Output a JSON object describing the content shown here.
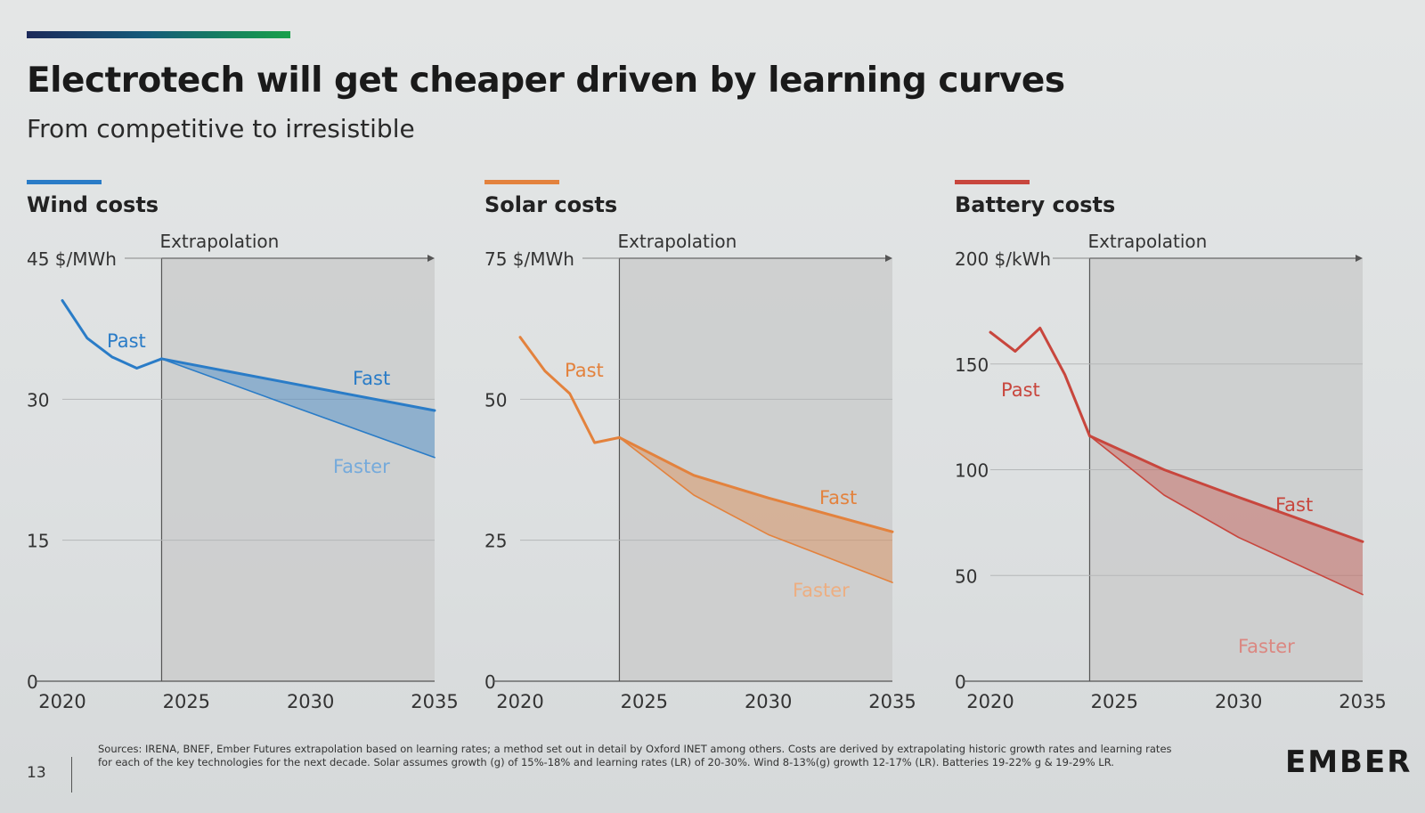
{
  "header": {
    "title": "Electrotech will get cheaper driven by learning curves",
    "subtitle": "From competitive to irresistible"
  },
  "colors": {
    "wind": "#2a7cc7",
    "solar": "#e3823d",
    "battery": "#c8463d"
  },
  "chart_data": [
    {
      "type": "line",
      "title": "Wind costs",
      "extrapolation_label": "Extrapolation",
      "ylabel": "45 $/MWh",
      "ylim": [
        0,
        45
      ],
      "yticks": [
        "0",
        "15",
        "30"
      ],
      "xticks": [
        "2020",
        "2025",
        "2030",
        "2035"
      ],
      "xlim": [
        2020,
        2035
      ],
      "extrapolation_start": 2024,
      "series": [
        {
          "name": "Past",
          "x": [
            2020,
            2021,
            2022,
            2023,
            2024
          ],
          "values": [
            40.5,
            36.5,
            34.5,
            33.3,
            34.3
          ]
        },
        {
          "name": "Fast",
          "x": [
            2024,
            2029,
            2035
          ],
          "values": [
            34.3,
            31.8,
            28.8
          ]
        },
        {
          "name": "Faster",
          "x": [
            2024,
            2029,
            2035
          ],
          "values": [
            34.3,
            29.5,
            23.8
          ]
        }
      ],
      "label_positions": [
        "Past",
        "Fast",
        "Faster"
      ]
    },
    {
      "type": "line",
      "title": "Solar costs",
      "extrapolation_label": "Extrapolation",
      "ylabel": "75 $/MWh",
      "ylim": [
        0,
        75
      ],
      "yticks": [
        "0",
        "25",
        "50"
      ],
      "xticks": [
        "2020",
        "2025",
        "2030",
        "2035"
      ],
      "xlim": [
        2020,
        2035
      ],
      "extrapolation_start": 2024,
      "series": [
        {
          "name": "Past",
          "x": [
            2020,
            2021,
            2022,
            2023,
            2024
          ],
          "values": [
            61,
            55,
            51,
            42.3,
            43.2
          ]
        },
        {
          "name": "Fast",
          "x": [
            2024,
            2027,
            2030,
            2035
          ],
          "values": [
            43.2,
            36.5,
            32.5,
            26.5
          ]
        },
        {
          "name": "Faster",
          "x": [
            2024,
            2027,
            2030,
            2035
          ],
          "values": [
            43.2,
            33,
            26,
            17.5
          ]
        }
      ]
    },
    {
      "type": "line",
      "title": "Battery costs",
      "extrapolation_label": "Extrapolation",
      "ylabel": "200 $/kWh",
      "ylim": [
        0,
        200
      ],
      "yticks": [
        "0",
        "50",
        "100",
        "150"
      ],
      "xticks": [
        "2020",
        "2025",
        "2030",
        "2035"
      ],
      "xlim": [
        2020,
        2035
      ],
      "extrapolation_start": 2024,
      "series": [
        {
          "name": "Past",
          "x": [
            2020,
            2021,
            2022,
            2023,
            2024
          ],
          "values": [
            165,
            156,
            167,
            145,
            116
          ]
        },
        {
          "name": "Fast",
          "x": [
            2024,
            2027,
            2030,
            2035
          ],
          "values": [
            116,
            100,
            87,
            66
          ]
        },
        {
          "name": "Faster",
          "x": [
            2024,
            2027,
            2030,
            2035
          ],
          "values": [
            116,
            88,
            68,
            41
          ]
        }
      ]
    }
  ],
  "footer": {
    "page_number": "13",
    "sources": "Sources: IRENA, BNEF, Ember Futures extrapolation based on learning rates; a method set out in detail by Oxford INET among others. Costs are derived by extrapolating historic growth rates and learning rates for each of the key technologies for the next decade. Solar assumes growth (g) of 15%-18% and learning rates (LR) of 20-30%. Wind 8-13%(g) growth 12-17% (LR). Batteries 19-22% g & 19-29% LR.",
    "logo_text": "EMBER"
  }
}
